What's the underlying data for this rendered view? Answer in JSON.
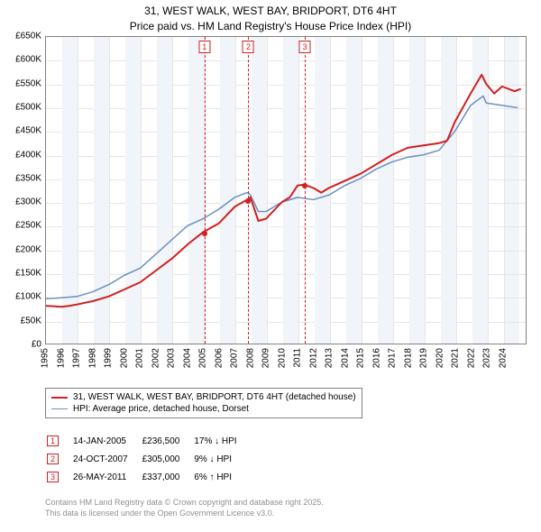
{
  "title": {
    "line1": "31, WEST WALK, WEST BAY, BRIDPORT, DT6 4HT",
    "line2": "Price paid vs. HM Land Registry's House Price Index (HPI)"
  },
  "chart": {
    "type": "line",
    "background_color": "#ffffff",
    "grid_color": "#e6e6e6",
    "alt_band_color": "#f1f4f8",
    "border_color": "#808080",
    "x": {
      "min": 1995,
      "max": 2025.5,
      "ticks": [
        1995,
        1996,
        1997,
        1998,
        1999,
        2000,
        2001,
        2002,
        2003,
        2004,
        2005,
        2006,
        2007,
        2008,
        2009,
        2010,
        2011,
        2012,
        2013,
        2014,
        2015,
        2016,
        2017,
        2018,
        2019,
        2020,
        2021,
        2022,
        2023,
        2024
      ],
      "rotation": -90,
      "label_fontsize": 10
    },
    "y": {
      "min": 0,
      "max": 650000,
      "tick_step": 50000,
      "tick_labels": [
        "£0",
        "£50K",
        "£100K",
        "£150K",
        "£200K",
        "£250K",
        "£300K",
        "£350K",
        "£400K",
        "£450K",
        "£500K",
        "£550K",
        "£600K",
        "£650K"
      ],
      "label_fontsize": 10
    },
    "series": [
      {
        "name": "31, WEST WALK, WEST BAY, BRIDPORT, DT6 4HT (detached house)",
        "color": "#d02020",
        "line_width": 2,
        "points": [
          [
            1995,
            80000
          ],
          [
            1996,
            78000
          ],
          [
            1996.5,
            80000
          ],
          [
            1997,
            83000
          ],
          [
            1998,
            90000
          ],
          [
            1999,
            100000
          ],
          [
            2000,
            115000
          ],
          [
            2001,
            130000
          ],
          [
            2002,
            155000
          ],
          [
            2003,
            180000
          ],
          [
            2004,
            210000
          ],
          [
            2005,
            236500
          ],
          [
            2006,
            255000
          ],
          [
            2007,
            290000
          ],
          [
            2007.8,
            305000
          ],
          [
            2008,
            310000
          ],
          [
            2008.5,
            260000
          ],
          [
            2009,
            265000
          ],
          [
            2010,
            300000
          ],
          [
            2010.5,
            310000
          ],
          [
            2011,
            335000
          ],
          [
            2011.4,
            337000
          ],
          [
            2012,
            330000
          ],
          [
            2012.5,
            320000
          ],
          [
            2013,
            330000
          ],
          [
            2014,
            345000
          ],
          [
            2015,
            360000
          ],
          [
            2016,
            380000
          ],
          [
            2017,
            400000
          ],
          [
            2018,
            415000
          ],
          [
            2019,
            420000
          ],
          [
            2020,
            425000
          ],
          [
            2020.5,
            430000
          ],
          [
            2021,
            470000
          ],
          [
            2022,
            530000
          ],
          [
            2022.7,
            570000
          ],
          [
            2023,
            550000
          ],
          [
            2023.5,
            530000
          ],
          [
            2024,
            545000
          ],
          [
            2024.8,
            535000
          ],
          [
            2025.2,
            540000
          ]
        ]
      },
      {
        "name": "HPI: Average price, detached house, Dorset",
        "color": "#6a8fc0",
        "line_width": 1.5,
        "points": [
          [
            1995,
            95000
          ],
          [
            1996,
            97000
          ],
          [
            1997,
            100000
          ],
          [
            1998,
            110000
          ],
          [
            1999,
            125000
          ],
          [
            2000,
            145000
          ],
          [
            2001,
            160000
          ],
          [
            2002,
            190000
          ],
          [
            2003,
            220000
          ],
          [
            2004,
            250000
          ],
          [
            2005,
            265000
          ],
          [
            2006,
            285000
          ],
          [
            2007,
            310000
          ],
          [
            2007.8,
            320000
          ],
          [
            2008,
            315000
          ],
          [
            2008.5,
            280000
          ],
          [
            2009,
            280000
          ],
          [
            2010,
            300000
          ],
          [
            2011,
            310000
          ],
          [
            2012,
            305000
          ],
          [
            2013,
            315000
          ],
          [
            2014,
            335000
          ],
          [
            2015,
            350000
          ],
          [
            2016,
            370000
          ],
          [
            2017,
            385000
          ],
          [
            2018,
            395000
          ],
          [
            2019,
            400000
          ],
          [
            2020,
            410000
          ],
          [
            2021,
            450000
          ],
          [
            2022,
            505000
          ],
          [
            2022.8,
            525000
          ],
          [
            2023,
            510000
          ],
          [
            2024,
            505000
          ],
          [
            2025,
            500000
          ]
        ]
      }
    ],
    "markers": [
      {
        "x": 2005.04,
        "y": 236500
      },
      {
        "x": 2007.82,
        "y": 305000
      },
      {
        "x": 2011.4,
        "y": 337000
      }
    ],
    "events": [
      {
        "idx": "1",
        "x": 2005.04,
        "date": "14-JAN-2005",
        "price": "£236,500",
        "delta": "17% ↓ HPI"
      },
      {
        "idx": "2",
        "x": 2007.82,
        "date": "24-OCT-2007",
        "price": "£305,000",
        "delta": "9% ↓ HPI"
      },
      {
        "idx": "3",
        "x": 2011.4,
        "date": "26-MAY-2011",
        "price": "£337,000",
        "delta": "6% ↑ HPI"
      }
    ],
    "event_line_color": "#d02020"
  },
  "footer": {
    "line1": "Contains HM Land Registry data © Crown copyright and database right 2025.",
    "line2": "This data is licensed under the Open Government Licence v3.0."
  }
}
